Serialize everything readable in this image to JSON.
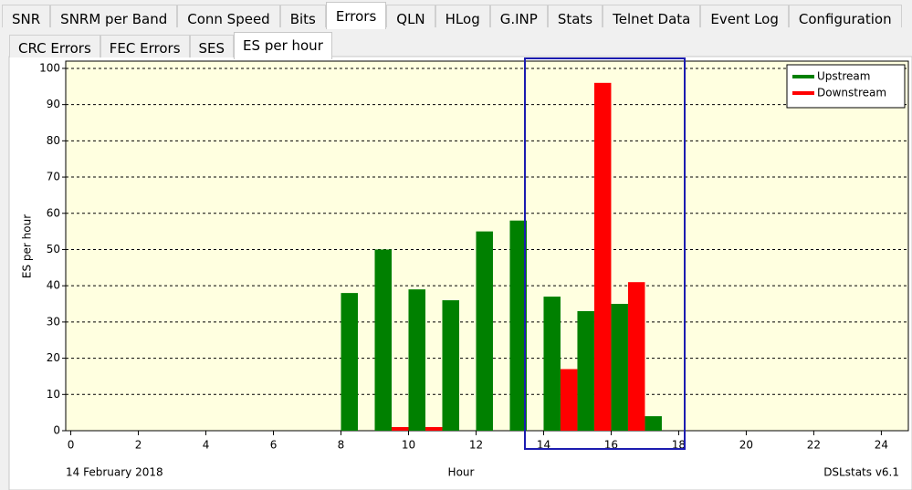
{
  "tabs": [
    {
      "label": "SNR",
      "selected": false
    },
    {
      "label": "SNRM per Band",
      "selected": false
    },
    {
      "label": "Conn Speed",
      "selected": false
    },
    {
      "label": "Bits",
      "selected": false
    },
    {
      "label": "Errors",
      "selected": true
    },
    {
      "label": "QLN",
      "selected": false
    },
    {
      "label": "HLog",
      "selected": false
    },
    {
      "label": "G.INP",
      "selected": false
    },
    {
      "label": "Stats",
      "selected": false
    },
    {
      "label": "Telnet Data",
      "selected": false
    },
    {
      "label": "Event Log",
      "selected": false
    },
    {
      "label": "Configuration",
      "selected": false
    }
  ],
  "subtabs": [
    {
      "label": "CRC Errors",
      "selected": false
    },
    {
      "label": "FEC Errors",
      "selected": false
    },
    {
      "label": "SES",
      "selected": false
    },
    {
      "label": "ES per hour",
      "selected": true
    }
  ],
  "chart_data": {
    "type": "bar",
    "y_label": "ES per hour",
    "x_label": "Hour",
    "date_label": "14 February 2018",
    "footer": "DSLstats v6.1",
    "x": [
      8,
      9,
      10,
      11,
      12,
      13,
      14,
      15,
      16,
      17
    ],
    "series": [
      {
        "name": "Upstream",
        "color": "#008000",
        "values": [
          38,
          50,
          39,
          36,
          55,
          58,
          37,
          33,
          35,
          4
        ]
      },
      {
        "name": "Downstream",
        "color": "#ff0000",
        "values": [
          0,
          1,
          1,
          0,
          0,
          0,
          17,
          96,
          41,
          0
        ]
      }
    ],
    "xlim": [
      -0.15,
      24.8
    ],
    "xticks": [
      0,
      2,
      4,
      6,
      8,
      10,
      12,
      14,
      16,
      18,
      20,
      22,
      24
    ],
    "ylim": [
      0,
      102
    ],
    "yticks": [
      0,
      10,
      20,
      30,
      40,
      50,
      60,
      70,
      80,
      90,
      100
    ],
    "grid": true,
    "legend": "upper right"
  }
}
